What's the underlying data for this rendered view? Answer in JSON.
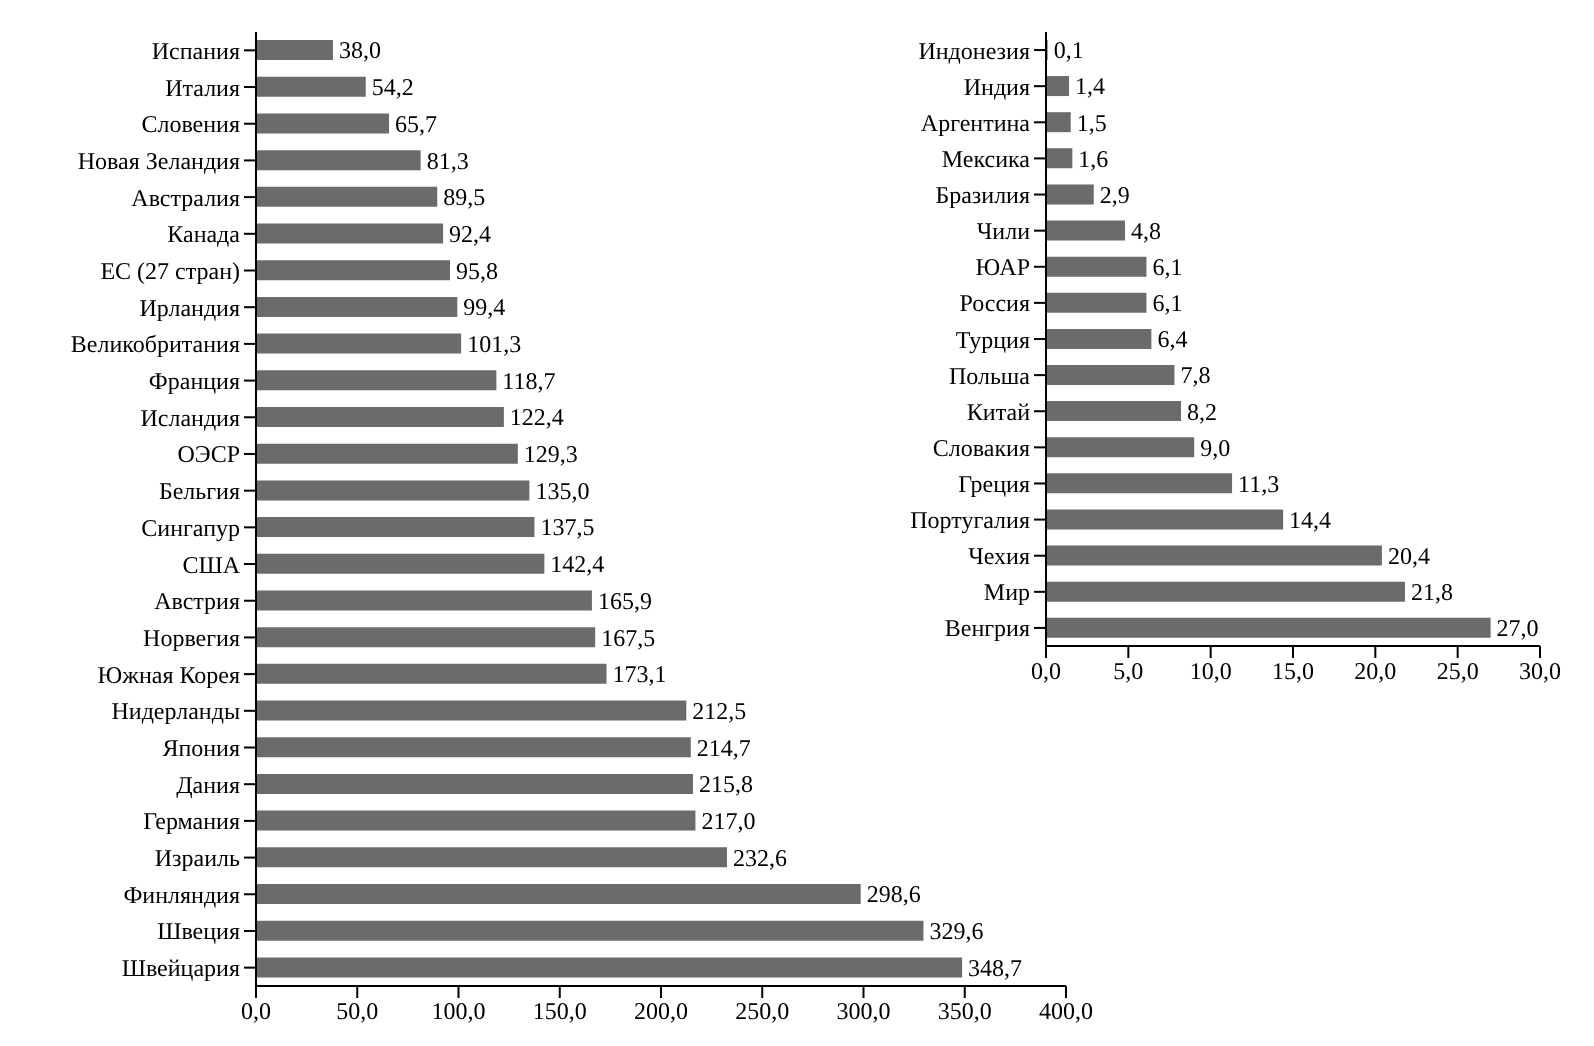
{
  "chart_data": [
    {
      "type": "bar",
      "orientation": "horizontal",
      "categories": [
        "Испания",
        "Италия",
        "Словения",
        "Новая Зеландия",
        "Австралия",
        "Канада",
        "ЕС (27 стран)",
        "Ирландия",
        "Великобритания",
        "Франция",
        "Исландия",
        "ОЭСР",
        "Бельгия",
        "Сингапур",
        "США",
        "Австрия",
        "Норвегия",
        "Южная Корея",
        "Нидерланды",
        "Япония",
        "Дания",
        "Германия",
        "Израиль",
        "Финляндия",
        "Швеция",
        "Швейцария"
      ],
      "values": [
        38.0,
        54.2,
        65.7,
        81.3,
        89.5,
        92.4,
        95.8,
        99.4,
        101.3,
        118.7,
        122.4,
        129.3,
        135.0,
        137.5,
        142.4,
        165.9,
        167.5,
        173.1,
        212.5,
        214.7,
        215.8,
        217.0,
        232.6,
        298.6,
        329.6,
        348.7
      ],
      "value_labels": [
        "38,0",
        "54,2",
        "65,7",
        "81,3",
        "89,5",
        "92,4",
        "95,8",
        "99,4",
        "101,3",
        "118,7",
        "122,4",
        "129,3",
        "135,0",
        "137,5",
        "142,4",
        "165,9",
        "167,5",
        "173,1",
        "212,5",
        "214,7",
        "215,8",
        "217,0",
        "232,6",
        "298,6",
        "329,6",
        "348,7"
      ],
      "color": "#6b6b6b",
      "xlim": [
        0,
        400
      ],
      "xticks": [
        {
          "value": 0,
          "label": "0,0"
        },
        {
          "value": 50,
          "label": "50,0"
        },
        {
          "value": 100,
          "label": "100,0"
        },
        {
          "value": 150,
          "label": "150,0"
        },
        {
          "value": 200,
          "label": "200,0"
        },
        {
          "value": 250,
          "label": "250,0"
        },
        {
          "value": 300,
          "label": "300,0"
        },
        {
          "value": 350,
          "label": "350,0"
        },
        {
          "value": 400,
          "label": "400,0"
        }
      ],
      "grid": false,
      "legend": false
    },
    {
      "type": "bar",
      "orientation": "horizontal",
      "categories": [
        "Индонезия",
        "Индия",
        "Аргентина",
        "Мексика",
        "Бразилия",
        "Чили",
        "ЮАР",
        "Россия",
        "Турция",
        "Польша",
        "Китай",
        "Словакия",
        "Греция",
        "Португалия",
        "Чехия",
        "Мир",
        "Венгрия"
      ],
      "values": [
        0.1,
        1.4,
        1.5,
        1.6,
        2.9,
        4.8,
        6.1,
        6.1,
        6.4,
        7.8,
        8.2,
        9.0,
        11.3,
        14.4,
        20.4,
        21.8,
        27.0
      ],
      "value_labels": [
        "0,1",
        "1,4",
        "1,5",
        "1,6",
        "2,9",
        "4,8",
        "6,1",
        "6,1",
        "6,4",
        "7,8",
        "8,2",
        "9,0",
        "11,3",
        "14,4",
        "20,4",
        "21,8",
        "27,0"
      ],
      "color": "#6b6b6b",
      "xlim": [
        0,
        30
      ],
      "xticks": [
        {
          "value": 0,
          "label": "0,0"
        },
        {
          "value": 5,
          "label": "5,0"
        },
        {
          "value": 10,
          "label": "10,0"
        },
        {
          "value": 15,
          "label": "15,0"
        },
        {
          "value": 20,
          "label": "20,0"
        },
        {
          "value": 25,
          "label": "25,0"
        },
        {
          "value": 30,
          "label": "30,0"
        }
      ],
      "grid": false,
      "legend": false
    }
  ]
}
